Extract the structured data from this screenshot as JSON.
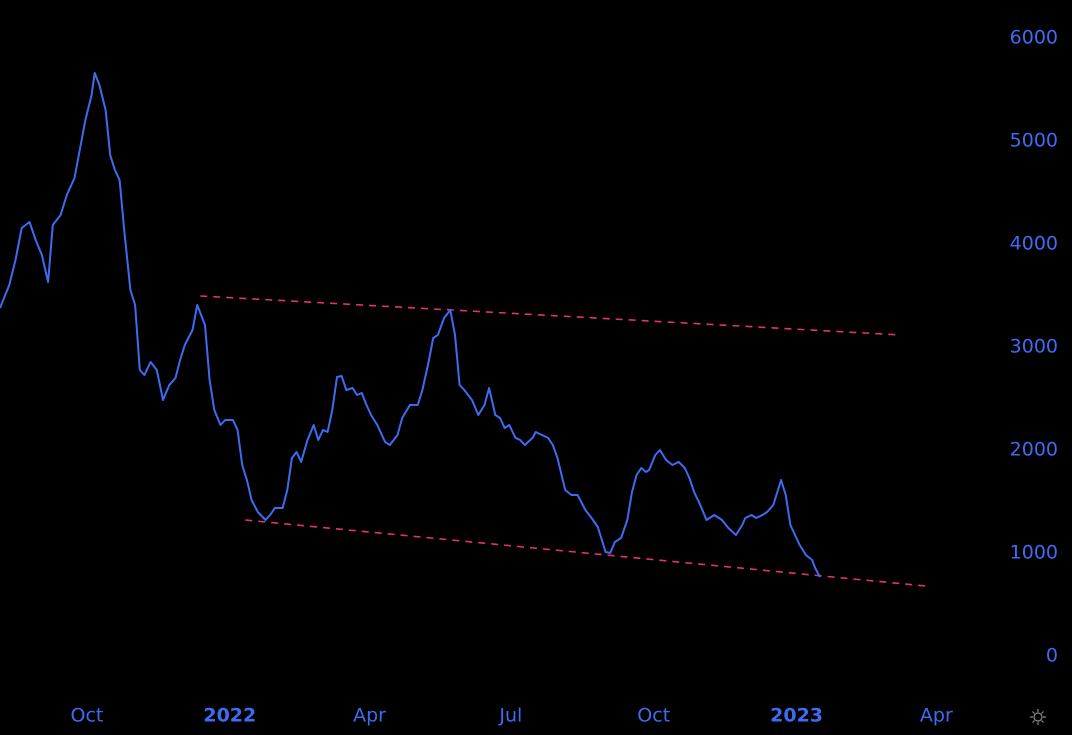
{
  "chart_data": {
    "type": "line",
    "x": [
      -56,
      -50,
      -46,
      -42,
      -37,
      -33,
      -29,
      -25,
      -22,
      -17,
      -13,
      -8,
      -4,
      -1,
      3,
      5,
      8,
      12,
      15,
      18,
      21,
      24,
      28,
      31,
      34,
      37,
      41,
      45,
      49,
      53,
      57,
      60,
      63,
      68,
      71,
      76,
      79,
      82,
      86,
      89,
      94,
      97,
      100,
      103,
      106,
      110,
      115,
      118,
      121,
      126,
      129,
      132,
      135,
      138,
      142,
      146,
      149,
      152,
      155,
      158,
      161,
      164,
      167,
      171,
      174,
      177,
      180,
      183,
      187,
      192,
      195,
      200,
      203,
      208,
      213,
      216,
      220,
      223,
      226,
      230,
      234,
      237,
      240,
      243,
      248,
      252,
      256,
      259,
      263,
      266,
      269,
      272,
      276,
      279,
      282,
      287,
      289,
      293,
      297,
      300,
      303,
      308,
      312,
      316,
      321,
      325,
      329,
      334,
      337,
      340,
      344,
      348,
      351,
      354,
      357,
      360,
      362,
      366,
      369,
      373,
      377,
      381,
      385,
      388,
      391,
      395,
      399,
      404,
      409,
      413,
      418,
      422,
      424,
      428,
      431,
      435,
      438,
      442,
      444,
      447,
      450,
      453,
      456,
      459,
      463,
      467,
      469,
      472
    ],
    "series": [
      {
        "color": "#3d6cf2",
        "values": [
          3379,
          3602,
          3845,
          4155,
          4214,
          4039,
          3893,
          3631,
          4184,
          4282,
          4476,
          4641,
          4961,
          5204,
          5447,
          5660,
          5544,
          5301,
          4864,
          4718,
          4621,
          4136,
          3553,
          3408,
          2777,
          2728,
          2854,
          2777,
          2485,
          2631,
          2699,
          2874,
          3019,
          3165,
          3408,
          3214,
          2680,
          2388,
          2243,
          2291,
          2291,
          2194,
          1854,
          1709,
          1515,
          1398,
          1320,
          1369,
          1437,
          1437,
          1612,
          1922,
          1981,
          1884,
          2097,
          2243,
          2097,
          2194,
          2175,
          2388,
          2709,
          2718,
          2583,
          2602,
          2534,
          2553,
          2437,
          2340,
          2243,
          2078,
          2049,
          2146,
          2311,
          2437,
          2437,
          2583,
          2854,
          3087,
          3117,
          3282,
          3359,
          3117,
          2631,
          2583,
          2485,
          2340,
          2437,
          2602,
          2340,
          2311,
          2214,
          2243,
          2117,
          2097,
          2049,
          2117,
          2175,
          2146,
          2117,
          2049,
          1922,
          1612,
          1563,
          1563,
          1417,
          1340,
          1252,
          1010,
          1000,
          1107,
          1146,
          1320,
          1592,
          1757,
          1825,
          1786,
          1806,
          1951,
          2000,
          1903,
          1854,
          1884,
          1825,
          1728,
          1592,
          1466,
          1320,
          1369,
          1320,
          1243,
          1175,
          1272,
          1340,
          1369,
          1340,
          1369,
          1398,
          1466,
          1563,
          1709,
          1563,
          1272,
          1175,
          1078,
          981,
          932,
          854,
          767
        ]
      }
    ],
    "trendlines": [
      {
        "color": "#e0336e",
        "x": [
          73,
          523
        ],
        "values": [
          3495,
          3117
        ]
      },
      {
        "color": "#e0336e",
        "x": [
          102,
          540
        ],
        "values": [
          1320,
          680
        ]
      }
    ],
    "xlim": [
      -56,
      588
    ],
    "xticks": [
      {
        "value": 0,
        "label": "Oct"
      },
      {
        "value": 92,
        "label": "2022",
        "bold": true
      },
      {
        "value": 182,
        "label": "Apr"
      },
      {
        "value": 273,
        "label": "Jul"
      },
      {
        "value": 365,
        "label": "Oct"
      },
      {
        "value": 457,
        "label": "2023",
        "bold": true
      },
      {
        "value": 547,
        "label": "Apr"
      }
    ],
    "ylim": [
      0,
      6000
    ],
    "yticks": [
      0,
      1000,
      2000,
      3000,
      4000,
      5000,
      6000
    ]
  }
}
